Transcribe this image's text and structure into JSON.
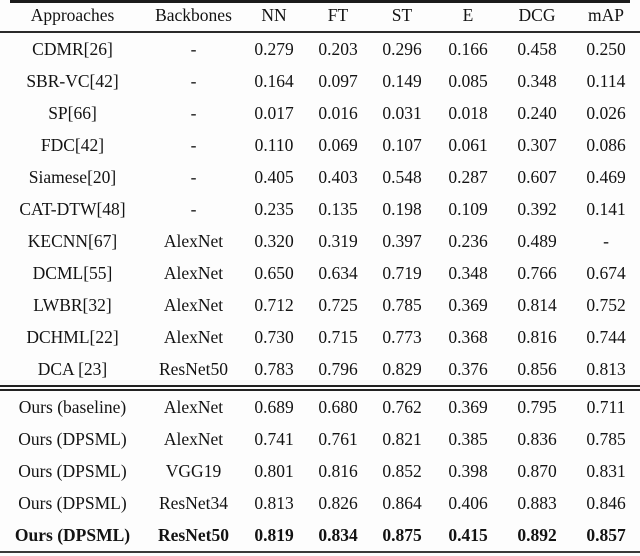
{
  "table": {
    "columns": [
      "Approaches",
      "Backbones",
      "NN",
      "FT",
      "ST",
      "E",
      "DCG",
      "mAP"
    ],
    "rows": [
      {
        "cells": [
          "CDMR[26]",
          "-",
          "0.279",
          "0.203",
          "0.296",
          "0.166",
          "0.458",
          "0.250"
        ],
        "bold": false,
        "rule_above": false
      },
      {
        "cells": [
          "SBR-VC[42]",
          "-",
          "0.164",
          "0.097",
          "0.149",
          "0.085",
          "0.348",
          "0.114"
        ],
        "bold": false,
        "rule_above": false
      },
      {
        "cells": [
          "SP[66]",
          "-",
          "0.017",
          "0.016",
          "0.031",
          "0.018",
          "0.240",
          "0.026"
        ],
        "bold": false,
        "rule_above": false
      },
      {
        "cells": [
          "FDC[42]",
          "-",
          "0.110",
          "0.069",
          "0.107",
          "0.061",
          "0.307",
          "0.086"
        ],
        "bold": false,
        "rule_above": false
      },
      {
        "cells": [
          "Siamese[20]",
          "-",
          "0.405",
          "0.403",
          "0.548",
          "0.287",
          "0.607",
          "0.469"
        ],
        "bold": false,
        "rule_above": false
      },
      {
        "cells": [
          "CAT-DTW[48]",
          "-",
          "0.235",
          "0.135",
          "0.198",
          "0.109",
          "0.392",
          "0.141"
        ],
        "bold": false,
        "rule_above": false
      },
      {
        "cells": [
          "KECNN[67]",
          "AlexNet",
          "0.320",
          "0.319",
          "0.397",
          "0.236",
          "0.489",
          "-"
        ],
        "bold": false,
        "rule_above": false
      },
      {
        "cells": [
          "DCML[55]",
          "AlexNet",
          "0.650",
          "0.634",
          "0.719",
          "0.348",
          "0.766",
          "0.674"
        ],
        "bold": false,
        "rule_above": false
      },
      {
        "cells": [
          "LWBR[32]",
          "AlexNet",
          "0.712",
          "0.725",
          "0.785",
          "0.369",
          "0.814",
          "0.752"
        ],
        "bold": false,
        "rule_above": false
      },
      {
        "cells": [
          "DCHML[22]",
          "AlexNet",
          "0.730",
          "0.715",
          "0.773",
          "0.368",
          "0.816",
          "0.744"
        ],
        "bold": false,
        "rule_above": false
      },
      {
        "cells": [
          "DCA [23]",
          "ResNet50",
          "0.783",
          "0.796",
          "0.829",
          "0.376",
          "0.856",
          "0.813"
        ],
        "bold": false,
        "rule_above": false
      },
      {
        "cells": [
          "Ours (baseline)",
          "AlexNet",
          "0.689",
          "0.680",
          "0.762",
          "0.369",
          "0.795",
          "0.711"
        ],
        "bold": false,
        "rule_above": true
      },
      {
        "cells": [
          "Ours (DPSML)",
          "AlexNet",
          "0.741",
          "0.761",
          "0.821",
          "0.385",
          "0.836",
          "0.785"
        ],
        "bold": false,
        "rule_above": false
      },
      {
        "cells": [
          "Ours (DPSML)",
          "VGG19",
          "0.801",
          "0.816",
          "0.852",
          "0.398",
          "0.870",
          "0.831"
        ],
        "bold": false,
        "rule_above": false
      },
      {
        "cells": [
          "Ours (DPSML)",
          "ResNet34",
          "0.813",
          "0.826",
          "0.864",
          "0.406",
          "0.883",
          "0.846"
        ],
        "bold": false,
        "rule_above": false
      },
      {
        "cells": [
          "Ours (DPSML)",
          "ResNet50",
          "0.819",
          "0.834",
          "0.875",
          "0.415",
          "0.892",
          "0.857"
        ],
        "bold": true,
        "rule_above": false
      }
    ]
  }
}
